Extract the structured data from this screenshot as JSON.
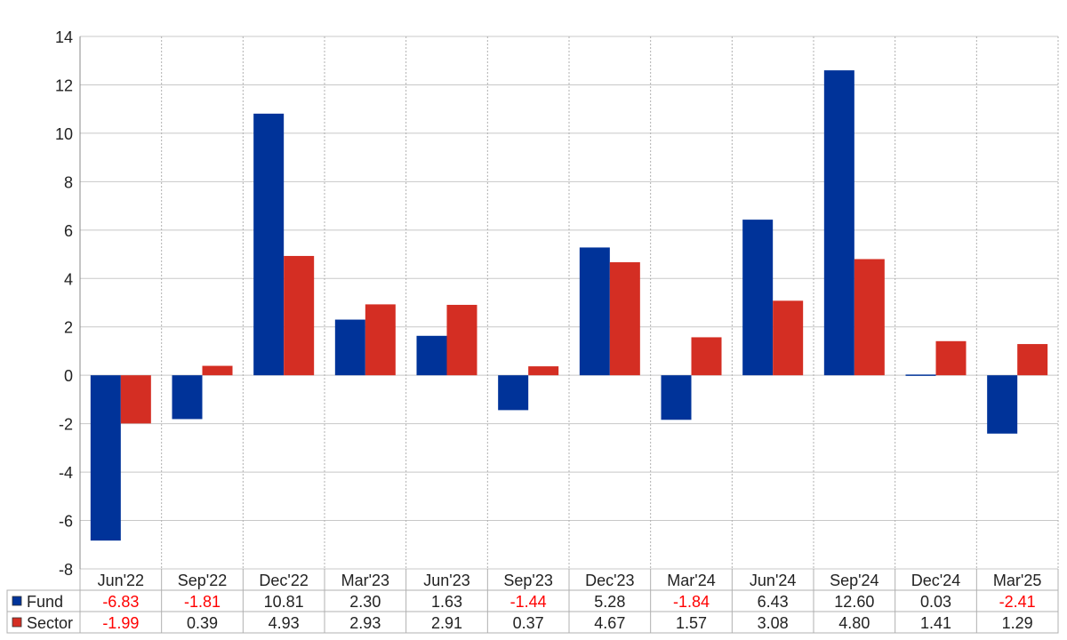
{
  "chart_data": {
    "type": "bar",
    "categories": [
      "Jun'22",
      "Sep'22",
      "Dec'22",
      "Mar'23",
      "Jun'23",
      "Sep'23",
      "Dec'23",
      "Mar'24",
      "Jun'24",
      "Sep'24",
      "Dec'24",
      "Mar'25"
    ],
    "series": [
      {
        "name": "Fund",
        "color": "#003399",
        "values": [
          -6.83,
          -1.81,
          10.81,
          2.3,
          1.63,
          -1.44,
          5.28,
          -1.84,
          6.43,
          12.6,
          0.03,
          -2.41
        ],
        "labels": [
          "-6.83",
          "-1.81",
          "10.81",
          "2.30",
          "1.63",
          "-1.44",
          "5.28",
          "-1.84",
          "6.43",
          "12.60",
          "0.03",
          "-2.41"
        ]
      },
      {
        "name": "Sector",
        "color": "#d42e23",
        "values": [
          -1.99,
          0.39,
          4.93,
          2.93,
          2.91,
          0.37,
          4.67,
          1.57,
          3.08,
          4.8,
          1.41,
          1.29
        ],
        "labels": [
          "-1.99",
          "0.39",
          "4.93",
          "2.93",
          "2.91",
          "0.37",
          "4.67",
          "1.57",
          "3.08",
          "4.80",
          "1.41",
          "1.29"
        ]
      }
    ],
    "ylim": [
      -8,
      14
    ],
    "yticks": [
      "-8",
      "-6",
      "-4",
      "-2",
      "0",
      "2",
      "4",
      "6",
      "8",
      "10",
      "12",
      "14"
    ],
    "grid": true,
    "legend": "data-table-below",
    "negative_label_color": "#ff0000"
  }
}
